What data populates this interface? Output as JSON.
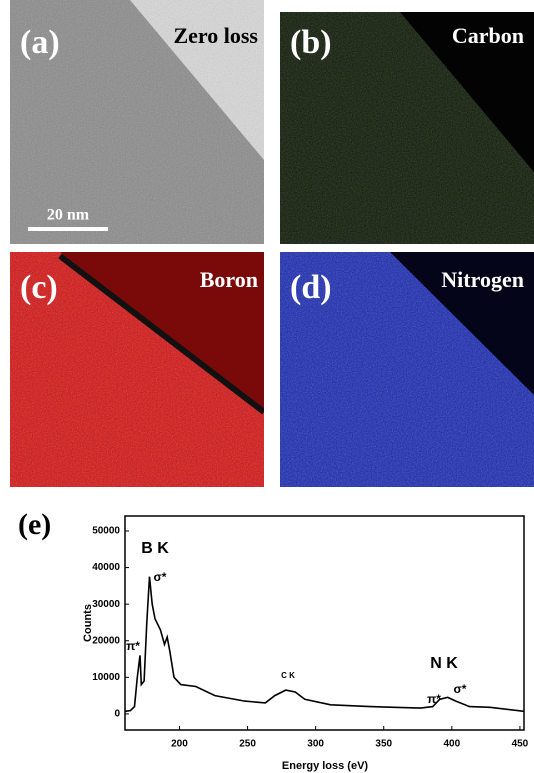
{
  "panels": [
    {
      "label": "(a)",
      "title": "Zero loss"
    },
    {
      "label": "(b)",
      "title": "Carbon"
    },
    {
      "label": "(c)",
      "title": "Boron"
    },
    {
      "label": "(d)",
      "title": "Nitrogen"
    }
  ],
  "scale_bar": "20 nm",
  "chart_data": {
    "type": "line",
    "label": "(e)",
    "xlabel": "Energy loss (eV)",
    "ylabel": "Counts",
    "x": [
      160,
      164,
      167,
      169,
      171,
      172,
      174,
      176,
      178,
      180,
      182,
      186,
      189,
      191,
      193,
      196,
      201,
      212,
      226,
      248,
      263,
      270,
      278,
      285,
      292,
      311,
      340,
      377,
      386,
      391,
      397,
      403,
      413,
      428,
      453
    ],
    "values": [
      700,
      900,
      2000,
      10000,
      16000,
      8000,
      9000,
      25000,
      37500,
      30000,
      26000,
      23000,
      19000,
      21000,
      17000,
      10000,
      8000,
      7500,
      5000,
      3500,
      3000,
      5000,
      6500,
      6000,
      4000,
      2500,
      2000,
      1600,
      2000,
      4000,
      4500,
      3500,
      2000,
      1800,
      700
    ],
    "color": "#000000",
    "xlim": [
      160,
      453
    ],
    "ylim": [
      -4400,
      54100
    ],
    "xticks": [
      200,
      250,
      300,
      350,
      400,
      450
    ],
    "yticks": [
      0,
      10000,
      20000,
      30000,
      40000,
      50000
    ],
    "annotations": [
      "B K",
      "σ*",
      "π*",
      "C K",
      "N K",
      "π*",
      "σ*"
    ]
  }
}
